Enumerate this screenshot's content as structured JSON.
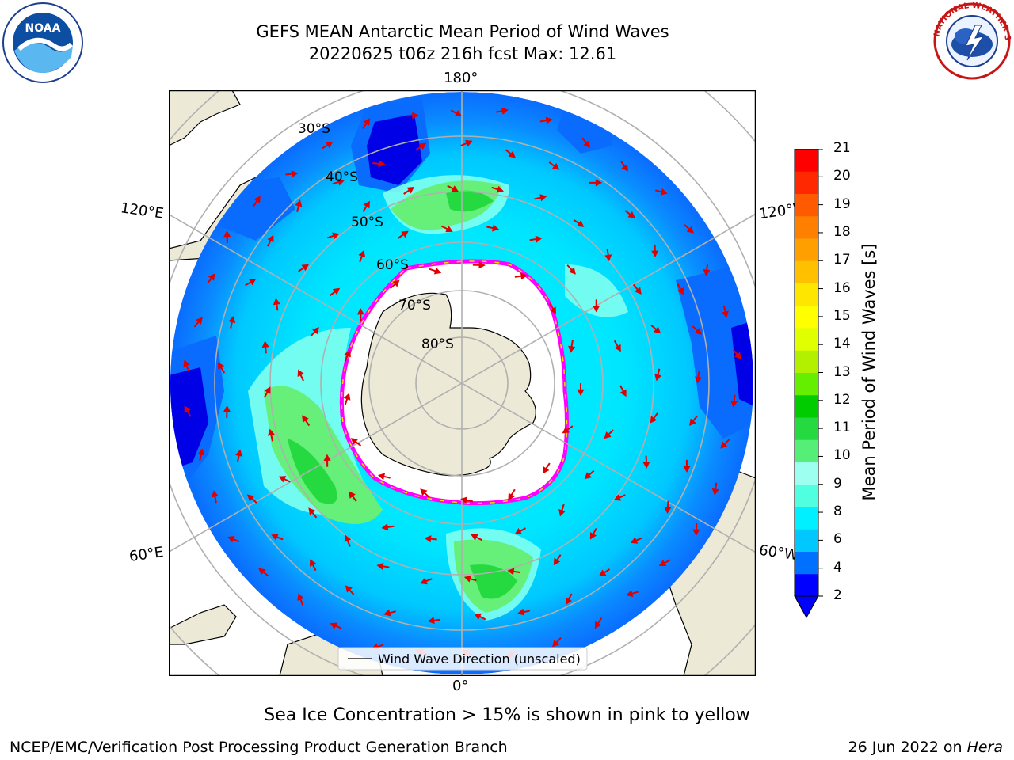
{
  "header": {
    "title_line1": "GEFS MEAN Antarctic Mean Period of Wind Waves",
    "title_line2": "20220625 t06z 216h fcst   Max: 12.61"
  },
  "map": {
    "projection": "south-polar-stereographic",
    "longitude_labels": {
      "top": "180°",
      "bottom": "0°",
      "left_upper": "120°E",
      "left_lower": "60°E",
      "right_upper": "120°W",
      "right_lower": "60°W"
    },
    "latitude_labels": [
      "30°S",
      "40°S",
      "50°S",
      "60°S",
      "70°S",
      "80°S"
    ],
    "legend_label": "Wind Wave Direction (unscaled)",
    "colors": {
      "land": "#ece9d6",
      "deep_blue": "#0000e0",
      "blue": "#0a6cff",
      "cyan_dark": "#00c8ff",
      "cyan": "#00f0ff",
      "aqua": "#7ffff0",
      "light_green": "#66f07a",
      "green": "#40e040",
      "ice_edge": "#ff00ff",
      "arrow": "#ff0000"
    }
  },
  "colorbar": {
    "label": "Mean Period of Wind Waves [s]",
    "ticks": [
      "21",
      "20",
      "19",
      "18",
      "17",
      "16",
      "15",
      "14",
      "13",
      "12",
      "11",
      "10",
      "9",
      "8",
      "6",
      "4",
      "2"
    ],
    "colors": [
      "#0000ff",
      "#0070ff",
      "#00c8ff",
      "#00f0ff",
      "#50ffe0",
      "#9dfff0",
      "#55ee77",
      "#25d940",
      "#00cc00",
      "#66ee00",
      "#b3f000",
      "#e0ff00",
      "#ffff00",
      "#ffe600",
      "#ffc000",
      "#ffa000",
      "#ff8000",
      "#ff5a00",
      "#ff2800",
      "#ff0000"
    ]
  },
  "footer": {
    "caption": "Sea Ice Concentration > 15% is shown in pink to yellow",
    "credit": "NCEP/EMC/Verification Post Processing Product Generation Branch",
    "date_prefix": "26 Jun 2022 on ",
    "date_machine": "Hera"
  },
  "logos": {
    "left": "NOAA",
    "right": "NATIONAL WEATHER SERVICE"
  }
}
